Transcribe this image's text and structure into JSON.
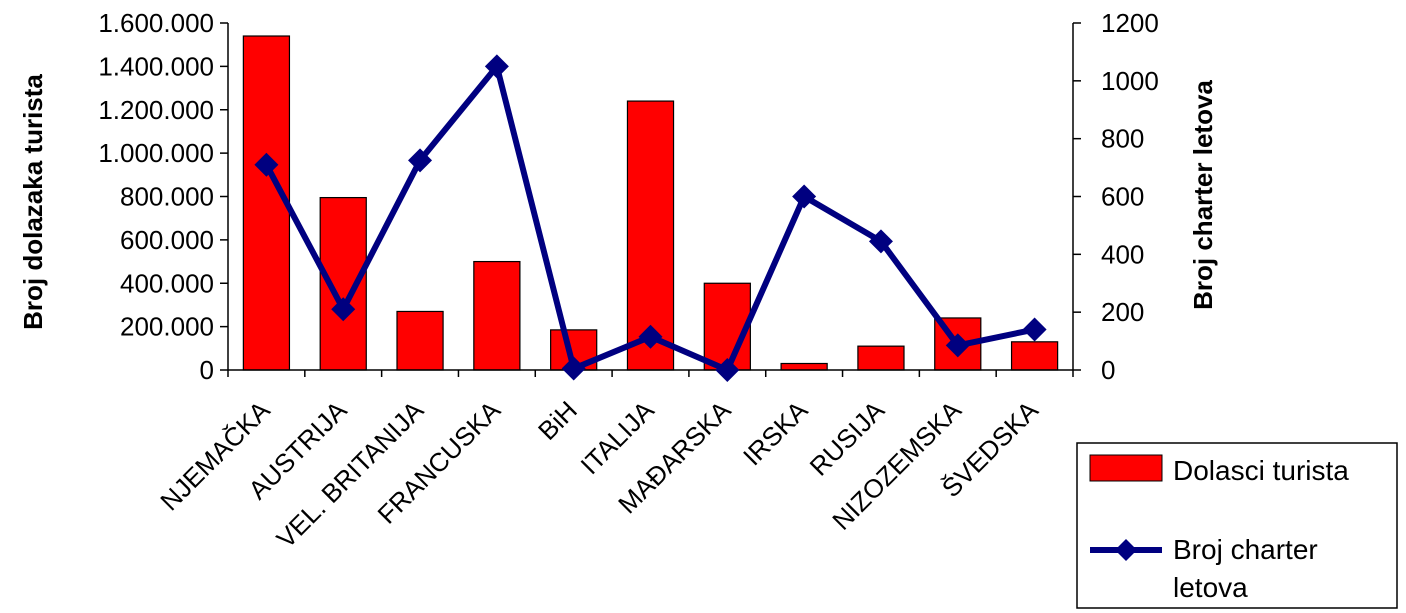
{
  "chart_data": {
    "type": "bar",
    "categories": [
      "NJEMAČKA",
      "AUSTRIJA",
      "VEL. BRITANIJA",
      "FRANCUSKA",
      "BiH",
      "ITALIJA",
      "MAĐARSKA",
      "IRSKA",
      "RUSIJA",
      "NIZOZEMSKA",
      "ŠVEDSKA"
    ],
    "series": [
      {
        "name": "Dolasci turista",
        "kind": "bar",
        "axis": "left",
        "color": "#ff0000",
        "values": [
          1540000,
          795000,
          270000,
          500000,
          185000,
          1240000,
          400000,
          30000,
          110000,
          240000,
          130000
        ]
      },
      {
        "name": "Broj charter letova",
        "kind": "line",
        "axis": "right",
        "color": "#000080",
        "marker": "diamond",
        "values": [
          710,
          210,
          725,
          1050,
          5,
          115,
          0,
          600,
          445,
          85,
          140
        ]
      }
    ],
    "ylabel": "Broj dolazaka turista",
    "y2label": "Broj charter letova",
    "ylim": [
      0,
      1600000
    ],
    "y2lim": [
      0,
      1200
    ],
    "yticks": [
      "0",
      "200.000",
      "400.000",
      "600.000",
      "800.000",
      "1.000.000",
      "1.200.000",
      "1.400.000",
      "1.600.000"
    ],
    "y2ticks": [
      "0",
      "200",
      "400",
      "600",
      "800",
      "1000",
      "1200"
    ],
    "grid": false,
    "legend_position": "bottom-right",
    "legend": [
      "Dolasci turista",
      "Broj charter",
      "letova"
    ]
  }
}
